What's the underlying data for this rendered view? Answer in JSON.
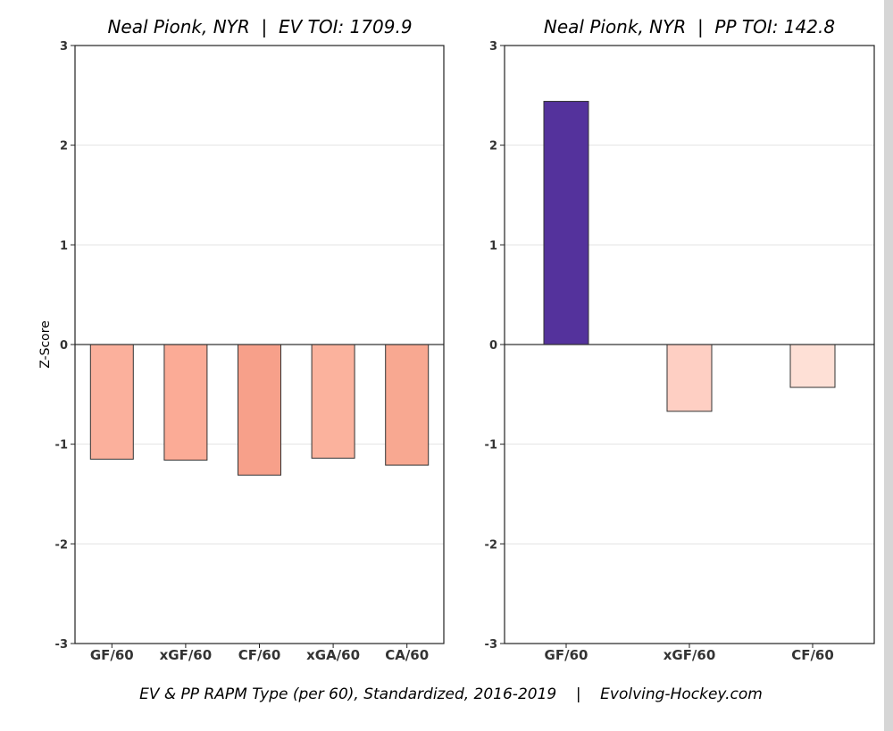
{
  "chart_data": [
    {
      "type": "bar",
      "title": "Neal Pionk, NYR  |  EV TOI: 1709.9",
      "ylabel": "Z-Score",
      "xlabel": "",
      "ylim": [
        -3,
        3
      ],
      "yticks": [
        -3,
        -2,
        -1,
        0,
        1,
        2,
        3
      ],
      "grid": "horizontal",
      "categories": [
        "GF/60",
        "xGF/60",
        "CF/60",
        "xGA/60",
        "CA/60"
      ],
      "values": [
        -1.15,
        -1.16,
        -1.31,
        -1.14,
        -1.21
      ],
      "colors": [
        "#fbb09c",
        "#fbab96",
        "#f7a08a",
        "#fbb29d",
        "#f8a891"
      ]
    },
    {
      "type": "bar",
      "title": "Neal Pionk, NYR  |  PP TOI: 142.8",
      "ylabel": "",
      "xlabel": "",
      "ylim": [
        -3,
        3
      ],
      "yticks": [
        -3,
        -2,
        -1,
        0,
        1,
        2,
        3
      ],
      "grid": "horizontal",
      "categories": [
        "GF/60",
        "xGF/60",
        "CF/60"
      ],
      "values": [
        2.44,
        -0.67,
        -0.43
      ],
      "colors": [
        "#54329c",
        "#fecfc3",
        "#fee0d6"
      ]
    }
  ],
  "caption": "EV & PP RAPM Type (per 60), Standardized, 2016-2019    |    Evolving-Hockey.com"
}
